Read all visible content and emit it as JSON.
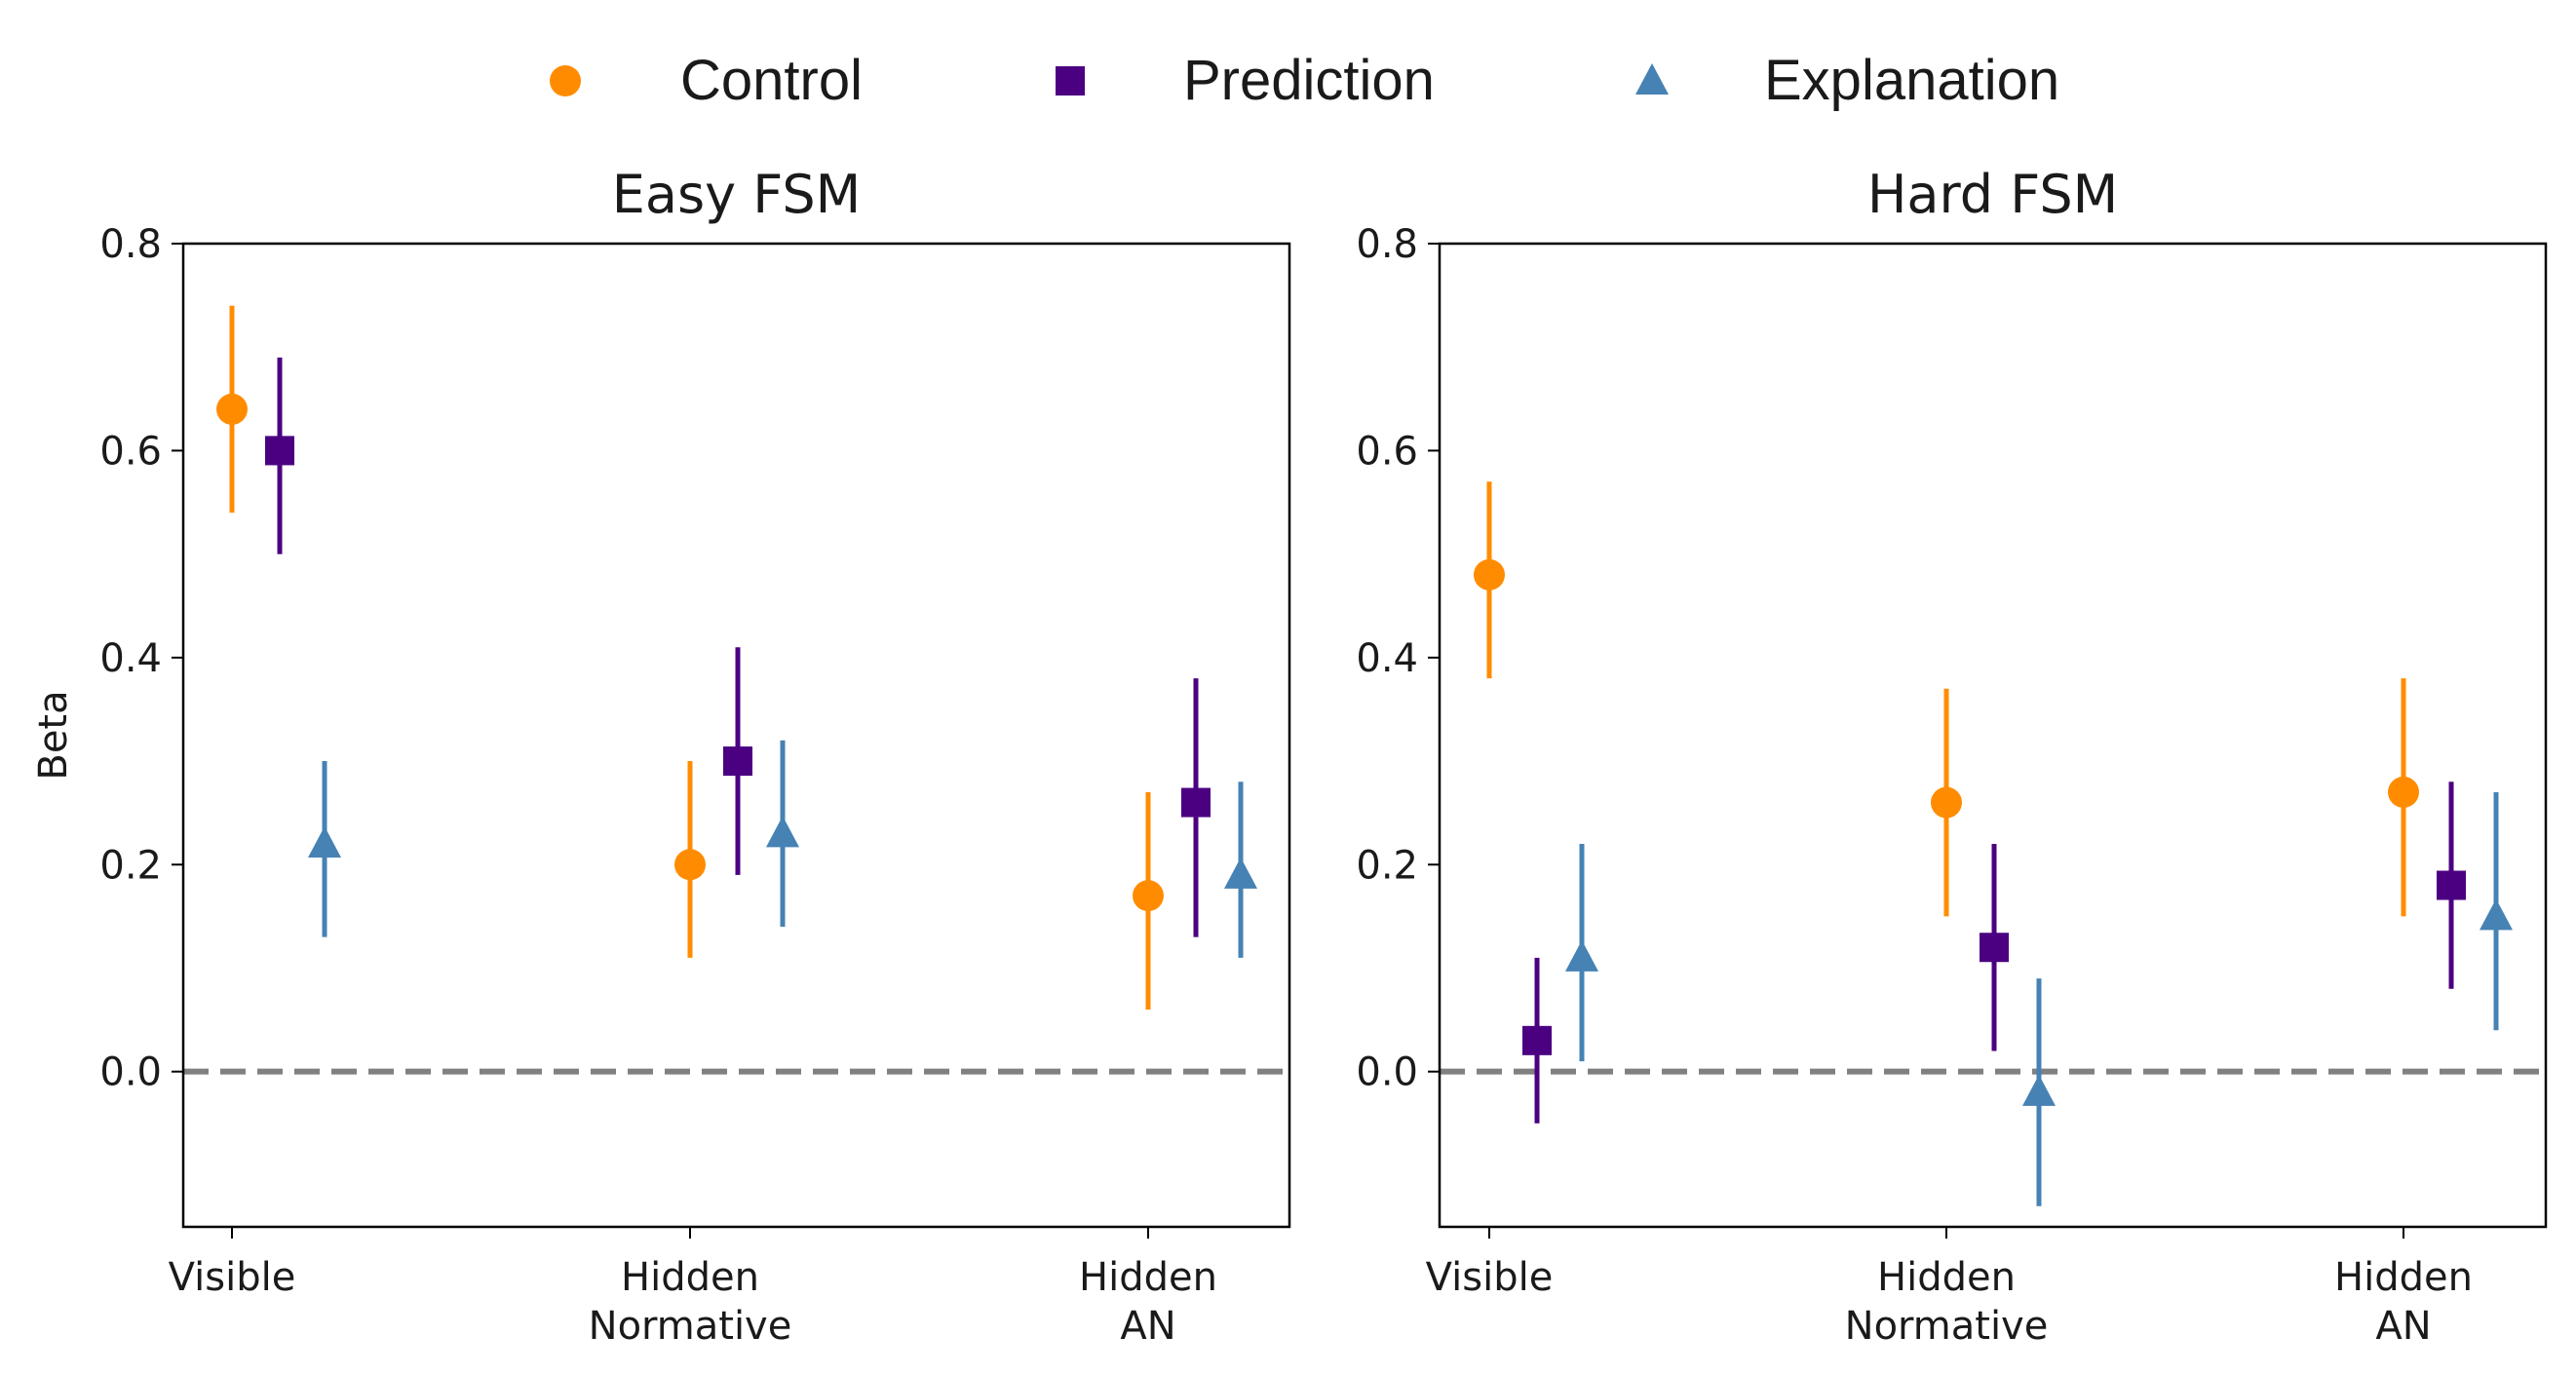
{
  "legend": [
    {
      "name": "Control",
      "color": "#FF8C00",
      "marker": "circle"
    },
    {
      "name": "Prediction",
      "color": "#4B0082",
      "marker": "square"
    },
    {
      "name": "Explanation",
      "color": "#4682B4",
      "marker": "triangle"
    }
  ],
  "reference_line": {
    "y": 0.0,
    "style": "dashed",
    "color": "#808080"
  },
  "chart_data": [
    {
      "type": "scatter",
      "title": "Easy FSM",
      "ylabel": "Beta",
      "xlabel": "",
      "ylim": [
        -0.15,
        0.8
      ],
      "yticks": [
        "0.8",
        "0.6",
        "0.4",
        "0.2",
        "0.0"
      ],
      "categories": [
        [
          "Visible"
        ],
        [
          "Hidden",
          "Normative"
        ],
        [
          "Hidden",
          "AN"
        ]
      ],
      "series": [
        {
          "name": "Control",
          "values": [
            0.64,
            0.2,
            0.17
          ],
          "lower": [
            0.54,
            0.11,
            0.06
          ],
          "upper": [
            0.74,
            0.3,
            0.27
          ]
        },
        {
          "name": "Prediction",
          "values": [
            0.6,
            0.3,
            0.26
          ],
          "lower": [
            0.5,
            0.19,
            0.13
          ],
          "upper": [
            0.69,
            0.41,
            0.38
          ]
        },
        {
          "name": "Explanation",
          "values": [
            0.22,
            0.23,
            0.19
          ],
          "lower": [
            0.13,
            0.14,
            0.11
          ],
          "upper": [
            0.3,
            0.32,
            0.28
          ]
        }
      ]
    },
    {
      "type": "scatter",
      "title": "Hard FSM",
      "ylabel": "",
      "xlabel": "",
      "ylim": [
        -0.15,
        0.8
      ],
      "yticks": [
        "0.8",
        "0.6",
        "0.4",
        "0.2",
        "0.0"
      ],
      "categories": [
        [
          "Visible"
        ],
        [
          "Hidden",
          "Normative"
        ],
        [
          "Hidden",
          "AN"
        ]
      ],
      "series": [
        {
          "name": "Control",
          "values": [
            0.48,
            0.26,
            0.27
          ],
          "lower": [
            0.38,
            0.15,
            0.15
          ],
          "upper": [
            0.57,
            0.37,
            0.38
          ]
        },
        {
          "name": "Prediction",
          "values": [
            0.03,
            0.12,
            0.18
          ],
          "lower": [
            -0.05,
            0.02,
            0.08
          ],
          "upper": [
            0.11,
            0.22,
            0.28
          ]
        },
        {
          "name": "Explanation",
          "values": [
            0.11,
            -0.02,
            0.15
          ],
          "lower": [
            0.01,
            -0.13,
            0.04
          ],
          "upper": [
            0.22,
            0.09,
            0.27
          ]
        }
      ]
    }
  ]
}
